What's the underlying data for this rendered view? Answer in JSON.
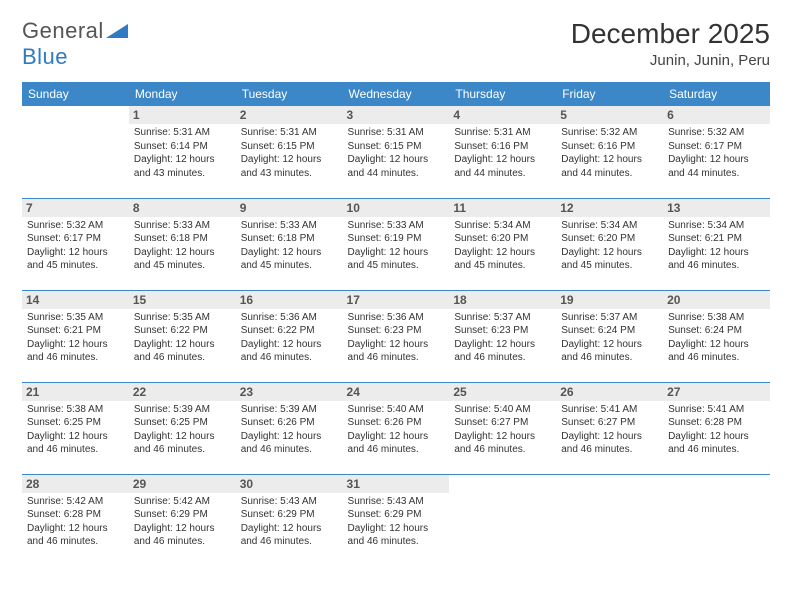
{
  "logo": {
    "textGray": "General",
    "textBlue": "Blue"
  },
  "title": "December 2025",
  "location": "Junin, Junin, Peru",
  "colors": {
    "headerBg": "#3c87c7",
    "headerText": "#ffffff",
    "dayBarBg": "#ececec",
    "borderColor": "#3c87c7",
    "bodyText": "#333333",
    "logoGray": "#555555",
    "logoBlue": "#2f7ac0"
  },
  "weekdays": [
    "Sunday",
    "Monday",
    "Tuesday",
    "Wednesday",
    "Thursday",
    "Friday",
    "Saturday"
  ],
  "weeks": [
    [
      {
        "day": "",
        "sun": ""
      },
      {
        "day": "1",
        "sun": "Sunrise: 5:31 AM\nSunset: 6:14 PM\nDaylight: 12 hours and 43 minutes."
      },
      {
        "day": "2",
        "sun": "Sunrise: 5:31 AM\nSunset: 6:15 PM\nDaylight: 12 hours and 43 minutes."
      },
      {
        "day": "3",
        "sun": "Sunrise: 5:31 AM\nSunset: 6:15 PM\nDaylight: 12 hours and 44 minutes."
      },
      {
        "day": "4",
        "sun": "Sunrise: 5:31 AM\nSunset: 6:16 PM\nDaylight: 12 hours and 44 minutes."
      },
      {
        "day": "5",
        "sun": "Sunrise: 5:32 AM\nSunset: 6:16 PM\nDaylight: 12 hours and 44 minutes."
      },
      {
        "day": "6",
        "sun": "Sunrise: 5:32 AM\nSunset: 6:17 PM\nDaylight: 12 hours and 44 minutes."
      }
    ],
    [
      {
        "day": "7",
        "sun": "Sunrise: 5:32 AM\nSunset: 6:17 PM\nDaylight: 12 hours and 45 minutes."
      },
      {
        "day": "8",
        "sun": "Sunrise: 5:33 AM\nSunset: 6:18 PM\nDaylight: 12 hours and 45 minutes."
      },
      {
        "day": "9",
        "sun": "Sunrise: 5:33 AM\nSunset: 6:18 PM\nDaylight: 12 hours and 45 minutes."
      },
      {
        "day": "10",
        "sun": "Sunrise: 5:33 AM\nSunset: 6:19 PM\nDaylight: 12 hours and 45 minutes."
      },
      {
        "day": "11",
        "sun": "Sunrise: 5:34 AM\nSunset: 6:20 PM\nDaylight: 12 hours and 45 minutes."
      },
      {
        "day": "12",
        "sun": "Sunrise: 5:34 AM\nSunset: 6:20 PM\nDaylight: 12 hours and 45 minutes."
      },
      {
        "day": "13",
        "sun": "Sunrise: 5:34 AM\nSunset: 6:21 PM\nDaylight: 12 hours and 46 minutes."
      }
    ],
    [
      {
        "day": "14",
        "sun": "Sunrise: 5:35 AM\nSunset: 6:21 PM\nDaylight: 12 hours and 46 minutes."
      },
      {
        "day": "15",
        "sun": "Sunrise: 5:35 AM\nSunset: 6:22 PM\nDaylight: 12 hours and 46 minutes."
      },
      {
        "day": "16",
        "sun": "Sunrise: 5:36 AM\nSunset: 6:22 PM\nDaylight: 12 hours and 46 minutes."
      },
      {
        "day": "17",
        "sun": "Sunrise: 5:36 AM\nSunset: 6:23 PM\nDaylight: 12 hours and 46 minutes."
      },
      {
        "day": "18",
        "sun": "Sunrise: 5:37 AM\nSunset: 6:23 PM\nDaylight: 12 hours and 46 minutes."
      },
      {
        "day": "19",
        "sun": "Sunrise: 5:37 AM\nSunset: 6:24 PM\nDaylight: 12 hours and 46 minutes."
      },
      {
        "day": "20",
        "sun": "Sunrise: 5:38 AM\nSunset: 6:24 PM\nDaylight: 12 hours and 46 minutes."
      }
    ],
    [
      {
        "day": "21",
        "sun": "Sunrise: 5:38 AM\nSunset: 6:25 PM\nDaylight: 12 hours and 46 minutes."
      },
      {
        "day": "22",
        "sun": "Sunrise: 5:39 AM\nSunset: 6:25 PM\nDaylight: 12 hours and 46 minutes."
      },
      {
        "day": "23",
        "sun": "Sunrise: 5:39 AM\nSunset: 6:26 PM\nDaylight: 12 hours and 46 minutes."
      },
      {
        "day": "24",
        "sun": "Sunrise: 5:40 AM\nSunset: 6:26 PM\nDaylight: 12 hours and 46 minutes."
      },
      {
        "day": "25",
        "sun": "Sunrise: 5:40 AM\nSunset: 6:27 PM\nDaylight: 12 hours and 46 minutes."
      },
      {
        "day": "26",
        "sun": "Sunrise: 5:41 AM\nSunset: 6:27 PM\nDaylight: 12 hours and 46 minutes."
      },
      {
        "day": "27",
        "sun": "Sunrise: 5:41 AM\nSunset: 6:28 PM\nDaylight: 12 hours and 46 minutes."
      }
    ],
    [
      {
        "day": "28",
        "sun": "Sunrise: 5:42 AM\nSunset: 6:28 PM\nDaylight: 12 hours and 46 minutes."
      },
      {
        "day": "29",
        "sun": "Sunrise: 5:42 AM\nSunset: 6:29 PM\nDaylight: 12 hours and 46 minutes."
      },
      {
        "day": "30",
        "sun": "Sunrise: 5:43 AM\nSunset: 6:29 PM\nDaylight: 12 hours and 46 minutes."
      },
      {
        "day": "31",
        "sun": "Sunrise: 5:43 AM\nSunset: 6:29 PM\nDaylight: 12 hours and 46 minutes."
      },
      {
        "day": "",
        "sun": ""
      },
      {
        "day": "",
        "sun": ""
      },
      {
        "day": "",
        "sun": ""
      }
    ]
  ]
}
